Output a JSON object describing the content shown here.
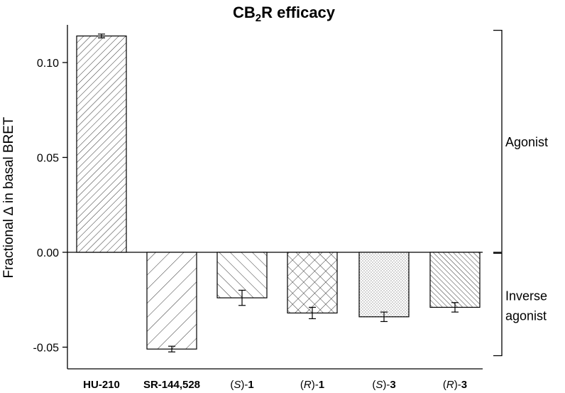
{
  "chart_data": {
    "type": "bar",
    "title": {
      "main": "CB",
      "sub": "2",
      "rest": "R efficacy"
    },
    "ylabel": "Fractional ∆ in basal BRET",
    "xlabel": "",
    "ylim": [
      -0.0585,
      0.12
    ],
    "yticks": [
      {
        "value": 0.1,
        "label": "0.10"
      },
      {
        "value": 0.05,
        "label": "0.05"
      },
      {
        "value": 0.0,
        "label": "0.00"
      },
      {
        "value": -0.05,
        "label": "-0.05"
      }
    ],
    "categories": [
      {
        "pre": "",
        "ital": "",
        "post": "HU-210",
        "bold_post": true
      },
      {
        "pre": "",
        "ital": "",
        "post": "SR-144,528",
        "bold_post": true
      },
      {
        "pre": "(",
        "ital": "S",
        "post": ")-",
        "num": "1"
      },
      {
        "pre": "(",
        "ital": "R",
        "post": ")-",
        "num": "1"
      },
      {
        "pre": "(",
        "ital": "S",
        "post": ")-",
        "num": "3"
      },
      {
        "pre": "(",
        "ital": "R",
        "post": ")-",
        "num": "3"
      }
    ],
    "values": [
      0.114,
      -0.051,
      -0.024,
      -0.032,
      -0.034,
      -0.029
    ],
    "errors": [
      0.001,
      0.0015,
      0.004,
      0.003,
      0.0025,
      0.0025
    ],
    "patterns": [
      "diag-fine-right",
      "diag-wide-right",
      "diag-left",
      "crosshatch",
      "dots",
      "diag-dense-left"
    ],
    "annotations": [
      {
        "label": "Agonist",
        "range": [
          0.0,
          0.117
        ]
      },
      {
        "label_lines": [
          "Inverse",
          "agonist"
        ],
        "range": [
          -0.0545,
          -0.0005
        ]
      }
    ]
  }
}
